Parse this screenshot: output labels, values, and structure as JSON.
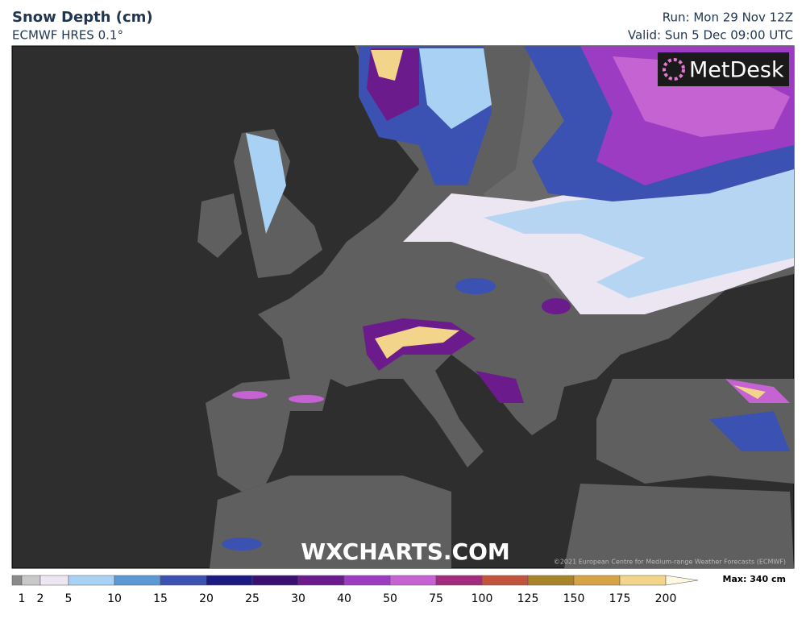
{
  "header": {
    "title": "Snow Depth (cm)",
    "subtitle": "ECMWF HRES 0.1°",
    "run": "Run: Mon 29 Nov 12Z",
    "valid": "Valid: Sun 5 Dec 09:00 UTC"
  },
  "logo": "MetDesk",
  "watermark": "WXCHARTS.COM",
  "copyright": "©2021 European Centre for Medium-range Weather Forecasts (ECMWF)",
  "legend": {
    "ticks": [
      1,
      2,
      5,
      10,
      15,
      20,
      25,
      30,
      40,
      50,
      75,
      100,
      125,
      150,
      175,
      200
    ],
    "colors": [
      "#8a8a8a",
      "#c8c8c8",
      "#ece6f2",
      "#a9d1f3",
      "#5b98d4",
      "#3c52b2",
      "#1b1b82",
      "#3b1170",
      "#6b1b8c",
      "#9c3cc2",
      "#c563d2",
      "#a22b7e",
      "#c2543e",
      "#a7832a",
      "#d6a447",
      "#f2d48a",
      "#fff8e0"
    ],
    "max_label": "Max: 340 cm"
  }
}
